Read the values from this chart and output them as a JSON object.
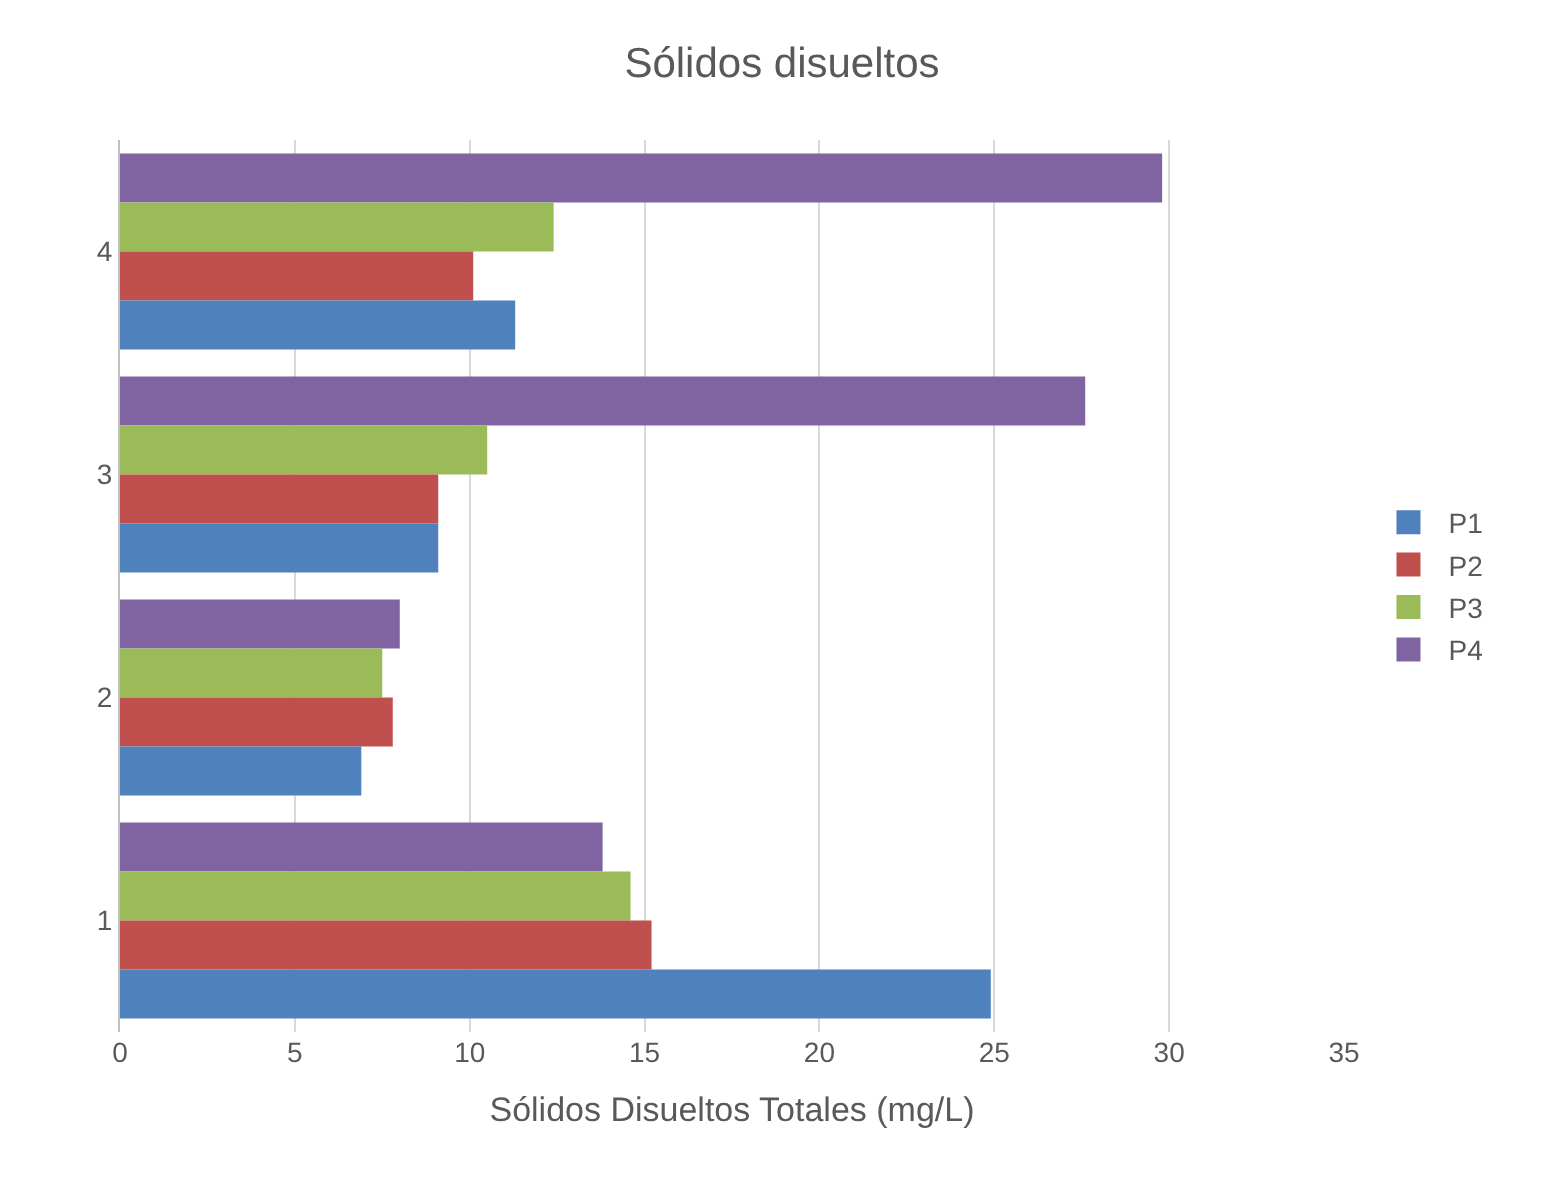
{
  "chart_data": {
    "type": "bar",
    "orientation": "horizontal",
    "title": "Sólidos disueltos",
    "xlabel": "Sólidos Disueltos Totales (mg/L)",
    "categories": [
      "4",
      "3",
      "2",
      "1"
    ],
    "series": [
      {
        "name": "P1",
        "color": "#4f81bd",
        "values": [
          11.3,
          9.1,
          6.9,
          24.9
        ]
      },
      {
        "name": "P2",
        "color": "#c0504d",
        "values": [
          10.1,
          9.1,
          7.8,
          15.2
        ]
      },
      {
        "name": "P3",
        "color": "#9bbb59",
        "values": [
          12.4,
          10.5,
          7.5,
          14.6
        ]
      },
      {
        "name": "P4",
        "color": "#8064a2",
        "values": [
          29.8,
          27.6,
          8.0,
          13.8
        ]
      }
    ],
    "xlim": [
      0,
      35
    ],
    "xticks": [
      0,
      5,
      10,
      15,
      20,
      25,
      30,
      35
    ],
    "grid": "x",
    "legend": "right"
  }
}
